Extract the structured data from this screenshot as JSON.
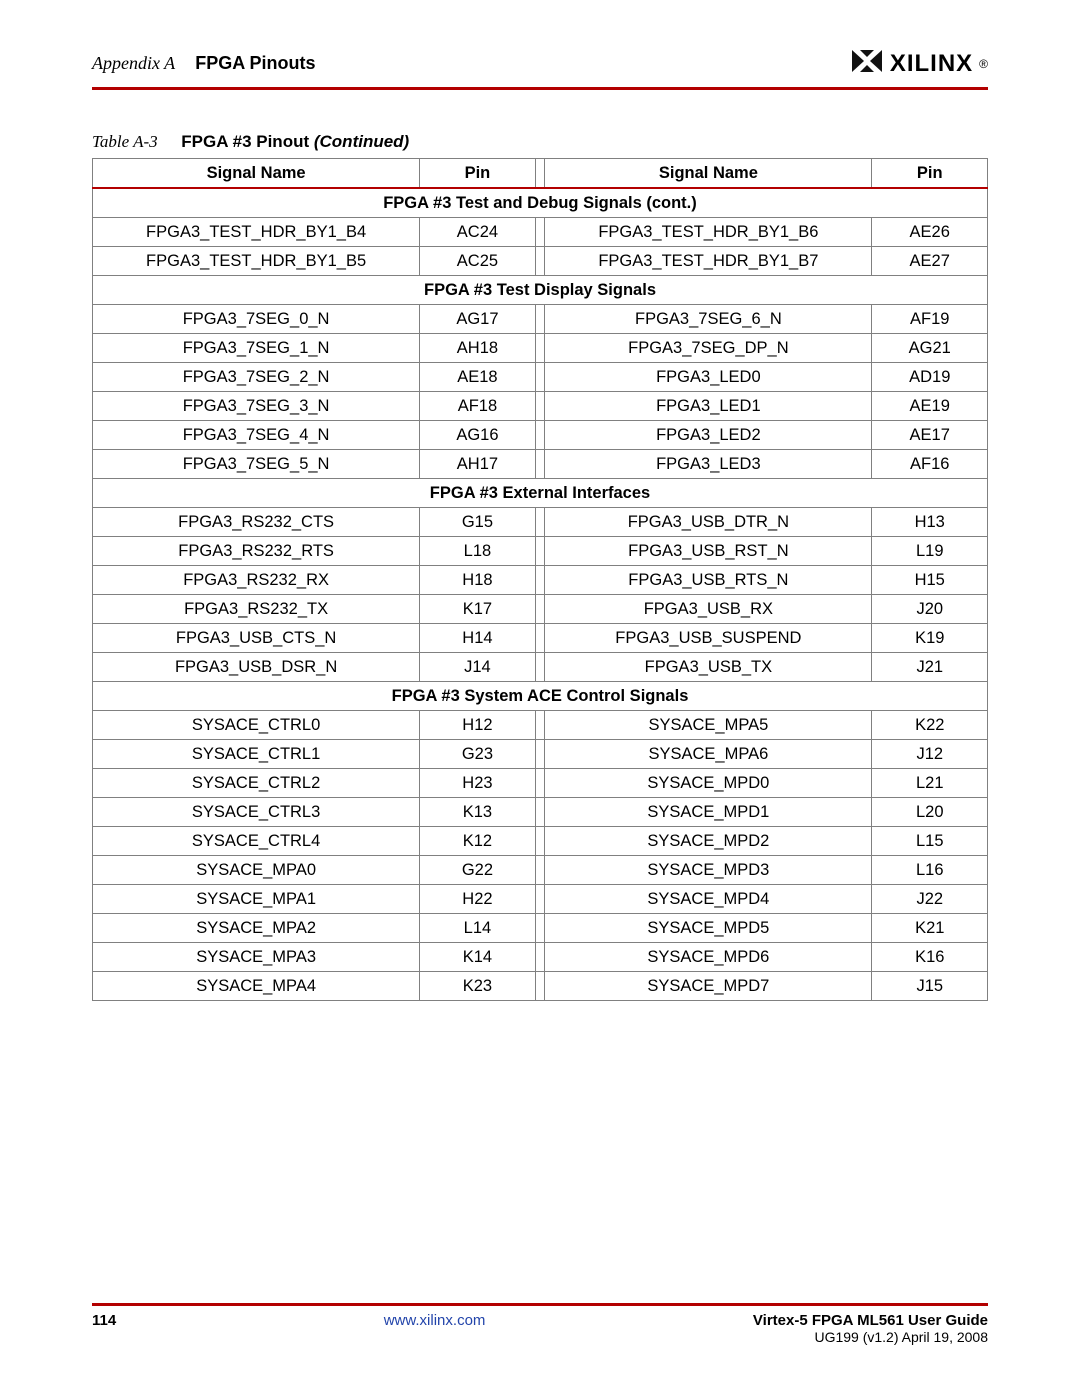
{
  "header": {
    "appendix_label": "Appendix A",
    "title": "FPGA Pinouts",
    "logo_text": "XILINX",
    "logo_reg": "®"
  },
  "table_caption": {
    "label": "Table  A-3",
    "title": "FPGA #3 Pinout",
    "cont": "(Continued)"
  },
  "columns": {
    "signal": "Signal Name",
    "pin": "Pin"
  },
  "sections": [
    {
      "title": "FPGA #3 Test and Debug Signals (cont.)",
      "rows": [
        {
          "l_sig": "FPGA3_TEST_HDR_BY1_B4",
          "l_pin": "AC24",
          "r_sig": "FPGA3_TEST_HDR_BY1_B6",
          "r_pin": "AE26"
        },
        {
          "l_sig": "FPGA3_TEST_HDR_BY1_B5",
          "l_pin": "AC25",
          "r_sig": "FPGA3_TEST_HDR_BY1_B7",
          "r_pin": "AE27"
        }
      ]
    },
    {
      "title": "FPGA #3 Test Display Signals",
      "rows": [
        {
          "l_sig": "FPGA3_7SEG_0_N",
          "l_pin": "AG17",
          "r_sig": "FPGA3_7SEG_6_N",
          "r_pin": "AF19"
        },
        {
          "l_sig": "FPGA3_7SEG_1_N",
          "l_pin": "AH18",
          "r_sig": "FPGA3_7SEG_DP_N",
          "r_pin": "AG21"
        },
        {
          "l_sig": "FPGA3_7SEG_2_N",
          "l_pin": "AE18",
          "r_sig": "FPGA3_LED0",
          "r_pin": "AD19"
        },
        {
          "l_sig": "FPGA3_7SEG_3_N",
          "l_pin": "AF18",
          "r_sig": "FPGA3_LED1",
          "r_pin": "AE19"
        },
        {
          "l_sig": "FPGA3_7SEG_4_N",
          "l_pin": "AG16",
          "r_sig": "FPGA3_LED2",
          "r_pin": "AE17"
        },
        {
          "l_sig": "FPGA3_7SEG_5_N",
          "l_pin": "AH17",
          "r_sig": "FPGA3_LED3",
          "r_pin": "AF16"
        }
      ]
    },
    {
      "title": "FPGA #3 External Interfaces",
      "rows": [
        {
          "l_sig": "FPGA3_RS232_CTS",
          "l_pin": "G15",
          "r_sig": "FPGA3_USB_DTR_N",
          "r_pin": "H13"
        },
        {
          "l_sig": "FPGA3_RS232_RTS",
          "l_pin": "L18",
          "r_sig": "FPGA3_USB_RST_N",
          "r_pin": "L19"
        },
        {
          "l_sig": "FPGA3_RS232_RX",
          "l_pin": "H18",
          "r_sig": "FPGA3_USB_RTS_N",
          "r_pin": "H15"
        },
        {
          "l_sig": "FPGA3_RS232_TX",
          "l_pin": "K17",
          "r_sig": "FPGA3_USB_RX",
          "r_pin": "J20"
        },
        {
          "l_sig": "FPGA3_USB_CTS_N",
          "l_pin": "H14",
          "r_sig": "FPGA3_USB_SUSPEND",
          "r_pin": "K19"
        },
        {
          "l_sig": "FPGA3_USB_DSR_N",
          "l_pin": "J14",
          "r_sig": "FPGA3_USB_TX",
          "r_pin": "J21"
        }
      ]
    },
    {
      "title": "FPGA #3 System ACE Control Signals",
      "rows": [
        {
          "l_sig": "SYSACE_CTRL0",
          "l_pin": "H12",
          "r_sig": "SYSACE_MPA5",
          "r_pin": "K22"
        },
        {
          "l_sig": "SYSACE_CTRL1",
          "l_pin": "G23",
          "r_sig": "SYSACE_MPA6",
          "r_pin": "J12"
        },
        {
          "l_sig": "SYSACE_CTRL2",
          "l_pin": "H23",
          "r_sig": "SYSACE_MPD0",
          "r_pin": "L21"
        },
        {
          "l_sig": "SYSACE_CTRL3",
          "l_pin": "K13",
          "r_sig": "SYSACE_MPD1",
          "r_pin": "L20"
        },
        {
          "l_sig": "SYSACE_CTRL4",
          "l_pin": "K12",
          "r_sig": "SYSACE_MPD2",
          "r_pin": "L15"
        },
        {
          "l_sig": "SYSACE_MPA0",
          "l_pin": "G22",
          "r_sig": "SYSACE_MPD3",
          "r_pin": "L16"
        },
        {
          "l_sig": "SYSACE_MPA1",
          "l_pin": "H22",
          "r_sig": "SYSACE_MPD4",
          "r_pin": "J22"
        },
        {
          "l_sig": "SYSACE_MPA2",
          "l_pin": "L14",
          "r_sig": "SYSACE_MPD5",
          "r_pin": "K21"
        },
        {
          "l_sig": "SYSACE_MPA3",
          "l_pin": "K14",
          "r_sig": "SYSACE_MPD6",
          "r_pin": "K16"
        },
        {
          "l_sig": "SYSACE_MPA4",
          "l_pin": "K23",
          "r_sig": "SYSACE_MPD7",
          "r_pin": "J15"
        }
      ]
    }
  ],
  "footer": {
    "page_num": "114",
    "url": "www.xilinx.com",
    "doc_title": "Virtex-5 FPGA ML561 User Guide",
    "doc_sub": "UG199 (v1.2) April 19, 2008"
  },
  "colors": {
    "accent": "#b30000",
    "link": "#2244aa",
    "border": "#808080"
  }
}
